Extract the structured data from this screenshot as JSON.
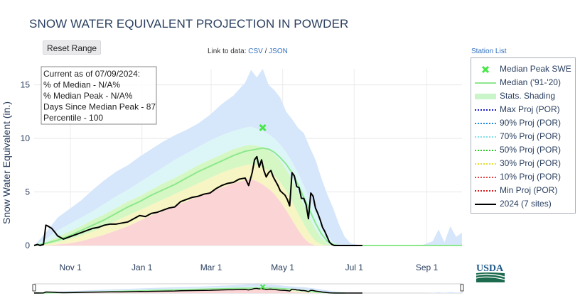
{
  "header": {
    "title": "SNOW WATER EQUIVALENT PROJECTION IN POWDER",
    "reset_label": "Reset Range",
    "link_prefix": "Link to data:",
    "link_csv": "CSV",
    "link_sep": "/",
    "link_json": "JSON",
    "station_list": "Station List"
  },
  "info_box": {
    "lines": [
      "Current as of 07/09/2024:",
      "% of Median - N/A%",
      "% Median Peak - N/A%",
      "Days Since Median Peak - 87",
      "Percentile - 100"
    ]
  },
  "legend": [
    {
      "name": "Median Peak SWE",
      "symbol": "x",
      "color": "#47e847"
    },
    {
      "name": "Median ('91-'20)",
      "symbol": "line",
      "color": "#8de88d"
    },
    {
      "name": "Stats. Shading",
      "symbol": "band",
      "color": "#c9f5c9"
    },
    {
      "name": "Max Proj (POR)",
      "symbol": "dot",
      "color": "#1c1cc8"
    },
    {
      "name": "90% Proj (POR)",
      "symbol": "dot",
      "color": "#1f8ae0"
    },
    {
      "name": "70% Proj (POR)",
      "symbol": "dot",
      "color": "#7ee0e6"
    },
    {
      "name": "50% Proj (POR)",
      "symbol": "dot",
      "color": "#28c828"
    },
    {
      "name": "30% Proj (POR)",
      "symbol": "dot",
      "color": "#e0e02a"
    },
    {
      "name": "10% Proj (POR)",
      "symbol": "dot",
      "color": "#e04848"
    },
    {
      "name": "Min Proj (POR)",
      "symbol": "dot",
      "color": "#d81c1c"
    },
    {
      "name": "2024 (7 sites)",
      "symbol": "line",
      "color": "#000000"
    }
  ],
  "chart_data": {
    "type": "area",
    "title": "SNOW WATER EQUIVALENT PROJECTION IN POWDER",
    "ylabel": "Snow Water Equivalent (in.)",
    "xlabel": "",
    "x_ticks": [
      "Nov  1",
      "Jan  1",
      "Mar  1",
      "May  1",
      "Jul  1",
      "Sep  1"
    ],
    "x_tick_days": [
      31,
      92,
      151,
      212,
      273,
      335
    ],
    "y_ticks": [
      0,
      5,
      10,
      15
    ],
    "xlim_days": [
      0,
      365
    ],
    "ylim": [
      0,
      16.5
    ],
    "grid": true,
    "legend_position": "right",
    "median_peak": {
      "day": 195,
      "swe": 11.0
    },
    "series": [
      {
        "name": "Median ('91-'20)",
        "x_days": [
          0,
          10,
          20,
          30,
          40,
          50,
          60,
          70,
          80,
          90,
          100,
          110,
          120,
          130,
          140,
          150,
          160,
          170,
          180,
          190,
          195,
          200,
          205,
          210,
          215,
          220,
          225,
          230,
          235,
          240,
          245,
          250,
          255,
          260,
          265
        ],
        "values": [
          0,
          0.2,
          0.5,
          0.9,
          1.4,
          1.9,
          2.4,
          3.0,
          3.6,
          4.1,
          4.7,
          5.2,
          5.7,
          6.3,
          6.9,
          7.4,
          7.9,
          8.4,
          8.8,
          9.0,
          9.1,
          9.0,
          8.7,
          8.2,
          7.6,
          6.8,
          5.7,
          4.5,
          3.3,
          2.1,
          1.1,
          0.4,
          0.1,
          0,
          0
        ]
      },
      {
        "name": "2024 (7 sites)",
        "x_days": [
          0,
          3,
          5,
          8,
          10,
          12,
          15,
          18,
          20,
          25,
          30,
          35,
          40,
          45,
          50,
          55,
          60,
          65,
          70,
          75,
          80,
          85,
          90,
          95,
          100,
          105,
          110,
          115,
          120,
          125,
          130,
          135,
          140,
          145,
          150,
          155,
          160,
          165,
          170,
          175,
          180,
          183,
          186,
          188,
          190,
          192,
          194,
          196,
          198,
          200,
          202,
          204,
          206,
          208,
          210,
          212,
          214,
          216,
          218,
          220,
          222,
          224,
          226,
          228,
          230,
          232,
          234,
          236,
          238,
          240,
          242,
          244,
          246,
          248,
          250,
          252,
          254,
          256,
          258,
          270,
          280
        ],
        "values": [
          0,
          0.1,
          0,
          0.1,
          1.9,
          1.8,
          1.6,
          1.2,
          0.9,
          0.6,
          0.8,
          1.0,
          1.2,
          1.4,
          1.6,
          1.7,
          1.9,
          2.0,
          2.0,
          2.1,
          2.2,
          2.5,
          2.8,
          2.7,
          3.0,
          3.1,
          3.3,
          3.5,
          3.6,
          4.1,
          4.3,
          4.5,
          4.6,
          4.8,
          4.9,
          5.3,
          5.6,
          5.8,
          5.9,
          6.2,
          6.3,
          5.6,
          6.8,
          8.0,
          8.3,
          7.3,
          8.0,
          7.0,
          6.4,
          6.8,
          7.0,
          6.4,
          6.0,
          5.6,
          5.1,
          4.9,
          4.7,
          4.3,
          3.7,
          6.8,
          6.5,
          5.5,
          5.4,
          4.4,
          4.4,
          3.8,
          2.5,
          4.9,
          4.6,
          3.5,
          3.0,
          2.4,
          1.7,
          1.3,
          0.8,
          0.3,
          0.1,
          0,
          0,
          0,
          0
        ]
      }
    ],
    "bands": [
      {
        "name": "max-90",
        "color": "#d6e6fb",
        "x_days": [
          0,
          10,
          20,
          30,
          40,
          50,
          60,
          70,
          80,
          90,
          100,
          110,
          120,
          130,
          140,
          150,
          160,
          170,
          180,
          185,
          190,
          195,
          200,
          205,
          210,
          215,
          220,
          225,
          230,
          235,
          240,
          245,
          250,
          255,
          260,
          265,
          270,
          280,
          290,
          300,
          310,
          320,
          330,
          340,
          345,
          350,
          355,
          360,
          365
        ],
        "upper": [
          0,
          1.2,
          2.6,
          3.4,
          4.2,
          5.2,
          6.1,
          6.9,
          7.5,
          8.3,
          9.0,
          9.7,
          10.3,
          10.8,
          11.4,
          12.2,
          13.2,
          14.0,
          15.2,
          16.4,
          15.7,
          16.5,
          15.0,
          14.5,
          13.8,
          12.5,
          11.8,
          11.0,
          10.5,
          9.2,
          8.0,
          6.3,
          4.8,
          3.5,
          2.0,
          0.8,
          0.2,
          0,
          0,
          0,
          0,
          0,
          0,
          0.4,
          1.5,
          0.3,
          1.8,
          0.8,
          1.2
        ],
        "lower": [
          0,
          0.6,
          1.4,
          2.0,
          2.6,
          3.2,
          3.9,
          4.6,
          5.2,
          5.9,
          6.6,
          7.3,
          8.0,
          8.6,
          9.2,
          9.8,
          10.3,
          10.7,
          11.0,
          11.1,
          10.9,
          10.7,
          10.4,
          10.0,
          9.4,
          8.7,
          7.8,
          6.8,
          5.6,
          4.4,
          3.2,
          2.0,
          1.0,
          0.3,
          0,
          0,
          0,
          0,
          0,
          0,
          0,
          0,
          0,
          0,
          0,
          0,
          0,
          0,
          0
        ]
      },
      {
        "name": "90-70",
        "color": "#dcf6f7",
        "x_days": [
          0,
          10,
          20,
          30,
          40,
          50,
          60,
          70,
          80,
          90,
          100,
          110,
          120,
          130,
          140,
          150,
          160,
          170,
          180,
          185,
          190,
          195,
          200,
          205,
          210,
          215,
          220,
          225,
          230,
          235,
          240,
          245,
          250,
          255,
          260,
          265
        ],
        "upper": [
          0,
          0.6,
          1.4,
          2.0,
          2.6,
          3.2,
          3.9,
          4.6,
          5.2,
          5.9,
          6.6,
          7.3,
          8.0,
          8.6,
          9.2,
          9.8,
          10.3,
          10.7,
          11.0,
          11.1,
          10.9,
          10.7,
          10.4,
          10.0,
          9.4,
          8.7,
          7.8,
          6.8,
          5.6,
          4.4,
          3.2,
          2.0,
          1.0,
          0.3,
          0,
          0
        ],
        "lower": [
          0,
          0.3,
          0.8,
          1.3,
          1.8,
          2.4,
          2.9,
          3.5,
          4.1,
          4.6,
          5.2,
          5.8,
          6.3,
          6.9,
          7.5,
          8.0,
          8.5,
          9.0,
          9.3,
          9.4,
          9.3,
          9.2,
          8.9,
          8.5,
          7.9,
          7.1,
          6.1,
          5.0,
          3.8,
          2.6,
          1.5,
          0.7,
          0.2,
          0,
          0,
          0
        ]
      },
      {
        "name": "70-30",
        "color": "#d4f7c4",
        "x_days": [
          0,
          10,
          20,
          30,
          40,
          50,
          60,
          70,
          80,
          90,
          100,
          110,
          120,
          130,
          140,
          150,
          160,
          170,
          180,
          185,
          190,
          195,
          200,
          205,
          210,
          215,
          220,
          225,
          230,
          235,
          240,
          245,
          250,
          255,
          260
        ],
        "upper": [
          0,
          0.3,
          0.8,
          1.3,
          1.8,
          2.4,
          2.9,
          3.5,
          4.1,
          4.6,
          5.2,
          5.8,
          6.3,
          6.9,
          7.5,
          8.0,
          8.5,
          9.0,
          9.3,
          9.4,
          9.3,
          9.2,
          8.9,
          8.5,
          7.9,
          7.1,
          6.1,
          5.0,
          3.8,
          2.6,
          1.5,
          0.7,
          0.2,
          0,
          0
        ],
        "lower": [
          0,
          0.1,
          0.3,
          0.6,
          0.9,
          1.3,
          1.8,
          2.3,
          2.8,
          3.3,
          3.8,
          4.3,
          4.8,
          5.3,
          5.8,
          6.3,
          6.8,
          7.2,
          7.5,
          7.6,
          7.5,
          7.3,
          7.0,
          6.5,
          5.9,
          5.1,
          4.1,
          3.0,
          2.0,
          1.1,
          0.4,
          0.1,
          0,
          0,
          0
        ]
      },
      {
        "name": "30-10",
        "color": "#f7f5c4",
        "x_days": [
          0,
          10,
          20,
          30,
          40,
          50,
          60,
          70,
          80,
          90,
          100,
          110,
          120,
          130,
          140,
          150,
          160,
          170,
          180,
          185,
          190,
          195,
          200,
          205,
          210,
          215,
          220,
          225,
          230,
          235,
          240,
          245,
          250
        ],
        "upper": [
          0,
          0.1,
          0.3,
          0.6,
          0.9,
          1.3,
          1.8,
          2.3,
          2.8,
          3.3,
          3.8,
          4.3,
          4.8,
          5.3,
          5.8,
          6.3,
          6.8,
          7.2,
          7.5,
          7.6,
          7.5,
          7.3,
          7.0,
          6.5,
          5.9,
          5.1,
          4.1,
          3.0,
          2.0,
          1.1,
          0.4,
          0.1,
          0
        ],
        "lower": [
          0,
          0,
          0.1,
          0.2,
          0.4,
          0.7,
          1.0,
          1.4,
          1.8,
          2.3,
          2.8,
          3.2,
          3.7,
          4.1,
          4.6,
          5.0,
          5.4,
          5.8,
          6.1,
          6.2,
          6.0,
          5.7,
          5.3,
          4.8,
          4.1,
          3.3,
          2.4,
          1.5,
          0.7,
          0.2,
          0,
          0,
          0
        ]
      },
      {
        "name": "10-min",
        "color": "#fbd5d5",
        "x_days": [
          0,
          10,
          20,
          30,
          40,
          50,
          60,
          70,
          80,
          90,
          100,
          110,
          120,
          130,
          140,
          150,
          160,
          170,
          180,
          185,
          190,
          195,
          200,
          205,
          210,
          215,
          220,
          225,
          230,
          235,
          240,
          245
        ],
        "upper": [
          0,
          0,
          0.1,
          0.2,
          0.4,
          0.7,
          1.0,
          1.4,
          1.8,
          2.3,
          2.8,
          3.2,
          3.7,
          4.1,
          4.6,
          5.0,
          5.4,
          5.8,
          6.1,
          6.2,
          6.0,
          5.7,
          5.3,
          4.8,
          4.1,
          3.3,
          2.4,
          1.5,
          0.7,
          0.2,
          0,
          0
        ],
        "lower": [
          0,
          0,
          0,
          0,
          0,
          0,
          0,
          0,
          0,
          0,
          0,
          0,
          0,
          0,
          0,
          0,
          0,
          0,
          0,
          0,
          0,
          0,
          0,
          0,
          0,
          0,
          0,
          0,
          0,
          0,
          0,
          0
        ]
      }
    ]
  }
}
